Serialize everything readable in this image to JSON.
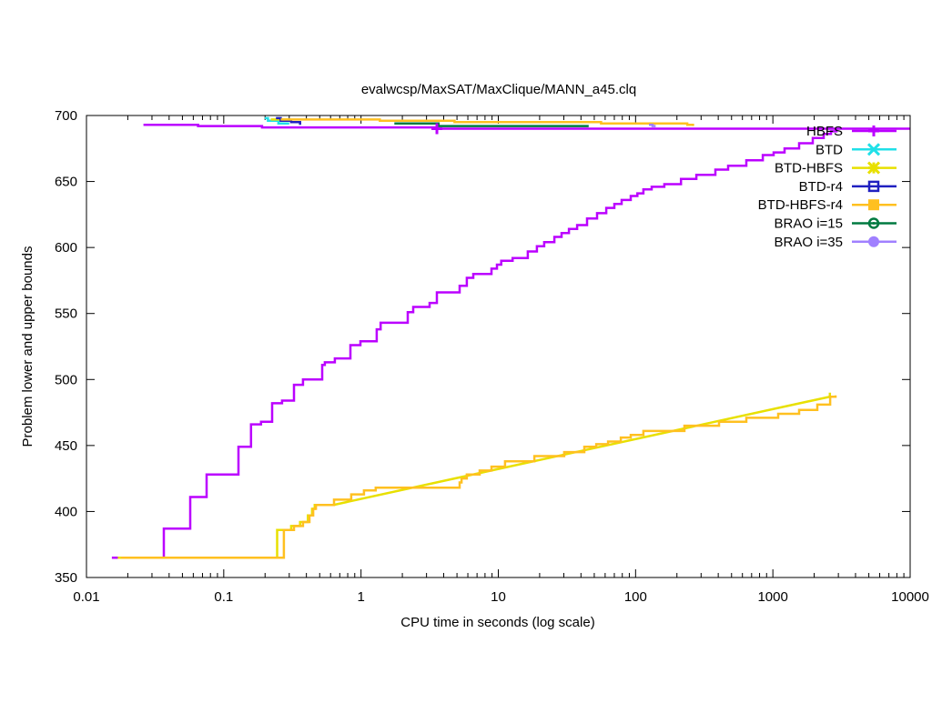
{
  "chart_data": {
    "type": "line",
    "title": "evalwcsp/MaxSAT/MaxClique/MANN_a45.clq",
    "xlabel": "CPU time in seconds (log scale)",
    "ylabel": "Problem lower and upper bounds",
    "xscale": "log",
    "xlim": [
      0.01,
      10000
    ],
    "ylim": [
      350,
      700
    ],
    "xticks": [
      0.01,
      0.1,
      1,
      10,
      100,
      1000,
      10000
    ],
    "xtick_labels": [
      "0.01",
      "0.1",
      "1",
      "10",
      "100",
      "1000",
      "10000"
    ],
    "yticks": [
      350,
      400,
      450,
      500,
      550,
      600,
      650,
      700
    ],
    "ytick_labels": [
      "350",
      "400",
      "450",
      "500",
      "550",
      "600",
      "650",
      "700"
    ],
    "grid": false,
    "legend_position": "top-right",
    "series": [
      {
        "name": "HBFS",
        "color": "#bb00ff",
        "marker": "plus",
        "upper": [
          [
            0.026,
            693
          ],
          [
            0.065,
            693
          ],
          [
            0.065,
            692
          ],
          [
            0.19,
            692
          ],
          [
            0.19,
            691
          ],
          [
            3.57,
            691
          ],
          [
            3.57,
            690
          ],
          [
            10000,
            690
          ]
        ],
        "lower": [
          [
            0.0153,
            365
          ],
          [
            0.0366,
            365
          ],
          [
            0.0366,
            387
          ],
          [
            0.057,
            387
          ],
          [
            0.057,
            411
          ],
          [
            0.075,
            411
          ],
          [
            0.075,
            428
          ],
          [
            0.128,
            428
          ],
          [
            0.128,
            449
          ],
          [
            0.158,
            449
          ],
          [
            0.158,
            466
          ],
          [
            0.187,
            466
          ],
          [
            0.187,
            468
          ],
          [
            0.225,
            468
          ],
          [
            0.225,
            482
          ],
          [
            0.266,
            482
          ],
          [
            0.266,
            484
          ],
          [
            0.325,
            484
          ],
          [
            0.325,
            496
          ],
          [
            0.378,
            496
          ],
          [
            0.378,
            500
          ],
          [
            0.521,
            500
          ],
          [
            0.521,
            511
          ],
          [
            0.545,
            511
          ],
          [
            0.545,
            513
          ],
          [
            0.645,
            513
          ],
          [
            0.645,
            516
          ],
          [
            0.837,
            516
          ],
          [
            0.837,
            526
          ],
          [
            0.99,
            526
          ],
          [
            0.99,
            529
          ],
          [
            1.3,
            529
          ],
          [
            1.3,
            538
          ],
          [
            1.39,
            538
          ],
          [
            1.39,
            543
          ],
          [
            2.19,
            543
          ],
          [
            2.19,
            551
          ],
          [
            2.4,
            551
          ],
          [
            2.4,
            555
          ],
          [
            3.16,
            555
          ],
          [
            3.16,
            558
          ],
          [
            3.57,
            558
          ],
          [
            3.57,
            566
          ],
          [
            5.23,
            566
          ],
          [
            5.23,
            571
          ],
          [
            5.9,
            571
          ],
          [
            5.9,
            577
          ],
          [
            6.57,
            577
          ],
          [
            6.57,
            580
          ],
          [
            8.92,
            580
          ],
          [
            8.92,
            584
          ],
          [
            9.78,
            584
          ],
          [
            9.78,
            587
          ],
          [
            10.5,
            587
          ],
          [
            10.5,
            590
          ],
          [
            12.7,
            590
          ],
          [
            12.7,
            592
          ],
          [
            16.4,
            592
          ],
          [
            16.4,
            597
          ],
          [
            19.1,
            597
          ],
          [
            19.1,
            601
          ],
          [
            21.6,
            601
          ],
          [
            21.6,
            604
          ],
          [
            25.6,
            604
          ],
          [
            25.6,
            608
          ],
          [
            28.9,
            608
          ],
          [
            28.9,
            611
          ],
          [
            32.7,
            611
          ],
          [
            32.7,
            614
          ],
          [
            37.5,
            614
          ],
          [
            37.5,
            617
          ],
          [
            44.3,
            617
          ],
          [
            44.3,
            622
          ],
          [
            52.4,
            622
          ],
          [
            52.4,
            626
          ],
          [
            61.1,
            626
          ],
          [
            61.1,
            630
          ],
          [
            70,
            630
          ],
          [
            70,
            633
          ],
          [
            79.1,
            633
          ],
          [
            79.1,
            636
          ],
          [
            92.2,
            636
          ],
          [
            92.2,
            639
          ],
          [
            103,
            639
          ],
          [
            103,
            641
          ],
          [
            114,
            641
          ],
          [
            114,
            644
          ],
          [
            131,
            644
          ],
          [
            131,
            646
          ],
          [
            162,
            646
          ],
          [
            162,
            648
          ],
          [
            214,
            648
          ],
          [
            214,
            652
          ],
          [
            277,
            652
          ],
          [
            277,
            655
          ],
          [
            381,
            655
          ],
          [
            381,
            659
          ],
          [
            472,
            659
          ],
          [
            472,
            662
          ],
          [
            641,
            662
          ],
          [
            641,
            666
          ],
          [
            844,
            666
          ],
          [
            844,
            670
          ],
          [
            1013,
            670
          ],
          [
            1013,
            672
          ],
          [
            1217,
            672
          ],
          [
            1217,
            675
          ],
          [
            1553,
            675
          ],
          [
            1553,
            679
          ],
          [
            1953,
            679
          ],
          [
            1953,
            683
          ],
          [
            2346,
            683
          ],
          [
            2346,
            686
          ],
          [
            2649,
            686
          ],
          [
            2649,
            688
          ],
          [
            2904,
            688
          ],
          [
            2904,
            690
          ]
        ]
      },
      {
        "name": "BTD",
        "color": "#20e0e8",
        "marker": "x",
        "upper": [
          [
            0.199,
            698
          ],
          [
            0.21,
            698
          ],
          [
            0.21,
            696
          ],
          [
            0.25,
            696
          ],
          [
            0.25,
            694
          ],
          [
            0.3,
            694
          ]
        ]
      },
      {
        "name": "BTD-HBFS",
        "color": "#e8e000",
        "marker": "star",
        "upper": [
          [
            0.22,
            697
          ],
          [
            0.3,
            697
          ]
        ],
        "lower": [
          [
            0.0169,
            365
          ],
          [
            0.245,
            365
          ],
          [
            0.245,
            386
          ],
          [
            0.31,
            386
          ],
          [
            0.31,
            389
          ],
          [
            0.36,
            389
          ],
          [
            0.36,
            392
          ],
          [
            0.41,
            392
          ],
          [
            0.41,
            397
          ],
          [
            0.44,
            397
          ],
          [
            0.44,
            402
          ],
          [
            0.46,
            402
          ],
          [
            0.46,
            405
          ],
          [
            0.63,
            405
          ],
          [
            2600,
            487
          ],
          [
            2600,
            490
          ]
        ]
      },
      {
        "name": "BTD-r4",
        "color": "#2020c0",
        "marker": "square",
        "upper": [
          [
            0.24,
            698
          ],
          [
            0.26,
            698
          ],
          [
            0.26,
            696
          ],
          [
            0.31,
            696
          ],
          [
            0.31,
            695
          ],
          [
            0.36,
            695
          ],
          [
            0.36,
            693
          ]
        ]
      },
      {
        "name": "BTD-HBFS-r4",
        "color": "#ffc020",
        "marker": "filled-square",
        "upper": [
          [
            0.26,
            697
          ],
          [
            1.37,
            697
          ],
          [
            1.37,
            696
          ],
          [
            4.8,
            696
          ],
          [
            4.8,
            695
          ],
          [
            56,
            695
          ],
          [
            56,
            694
          ],
          [
            238,
            694
          ],
          [
            238,
            693
          ],
          [
            262,
            693
          ],
          [
            262,
            692
          ]
        ],
        "lower": [
          [
            0.0179,
            365
          ],
          [
            0.274,
            365
          ],
          [
            0.274,
            386
          ],
          [
            0.325,
            386
          ],
          [
            0.325,
            389
          ],
          [
            0.378,
            389
          ],
          [
            0.378,
            392
          ],
          [
            0.421,
            392
          ],
          [
            0.421,
            397
          ],
          [
            0.448,
            397
          ],
          [
            0.448,
            402
          ],
          [
            0.469,
            402
          ],
          [
            0.469,
            405
          ],
          [
            0.636,
            405
          ],
          [
            0.636,
            409
          ],
          [
            0.849,
            409
          ],
          [
            0.849,
            413
          ],
          [
            1.05,
            413
          ],
          [
            1.05,
            416
          ],
          [
            1.28,
            416
          ],
          [
            1.28,
            418
          ],
          [
            5.23,
            418
          ],
          [
            5.23,
            422
          ],
          [
            5.4,
            422
          ],
          [
            5.4,
            425
          ],
          [
            5.9,
            425
          ],
          [
            5.9,
            428
          ],
          [
            7.31,
            428
          ],
          [
            7.31,
            431
          ],
          [
            8.92,
            431
          ],
          [
            8.92,
            434
          ],
          [
            11.2,
            434
          ],
          [
            11.2,
            438
          ],
          [
            18.3,
            438
          ],
          [
            18.3,
            442
          ],
          [
            30.2,
            442
          ],
          [
            30.2,
            445
          ],
          [
            42.3,
            445
          ],
          [
            42.3,
            449
          ],
          [
            51.7,
            449
          ],
          [
            51.7,
            451
          ],
          [
            63,
            451
          ],
          [
            63,
            453
          ],
          [
            78,
            453
          ],
          [
            78,
            456
          ],
          [
            92.2,
            456
          ],
          [
            92.2,
            458
          ],
          [
            114,
            458
          ],
          [
            114,
            461
          ],
          [
            227,
            461
          ],
          [
            227,
            465
          ],
          [
            405,
            465
          ],
          [
            405,
            468
          ],
          [
            641,
            468
          ],
          [
            641,
            471
          ],
          [
            1093,
            471
          ],
          [
            1093,
            474
          ],
          [
            1553,
            474
          ],
          [
            1553,
            477
          ],
          [
            2107,
            477
          ],
          [
            2107,
            481
          ],
          [
            2612,
            481
          ],
          [
            2612,
            487
          ],
          [
            2858,
            487
          ],
          [
            2858,
            488
          ]
        ]
      },
      {
        "name": "BRAO i=15",
        "color": "#007a40",
        "marker": "circle-dot",
        "upper": [
          [
            1.75,
            694
          ],
          [
            3.67,
            694
          ],
          [
            3.67,
            692
          ],
          [
            45.5,
            692
          ]
        ]
      },
      {
        "name": "BRAO i=35",
        "color": "#a080ff",
        "marker": "filled-circle",
        "upper": [
          [
            125,
            693
          ],
          [
            133,
            693
          ],
          [
            133,
            692
          ],
          [
            140,
            692
          ]
        ]
      }
    ]
  }
}
